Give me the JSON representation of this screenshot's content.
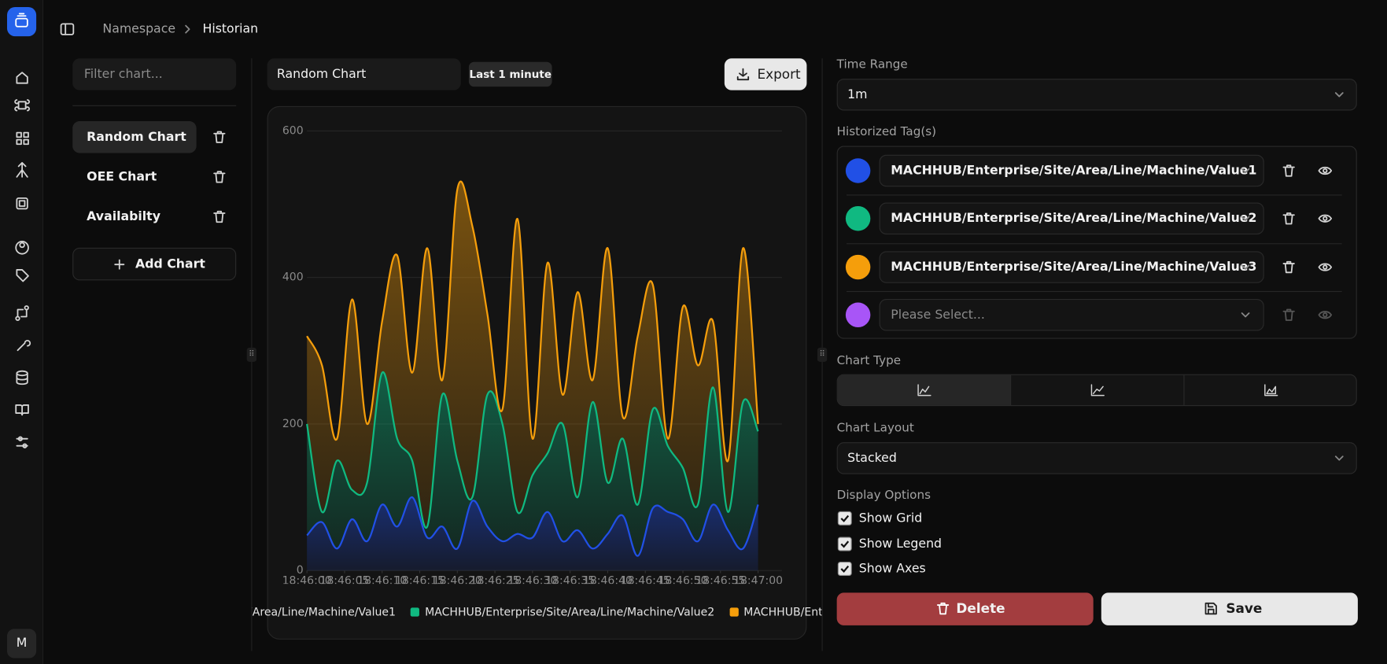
{
  "breadcrumb": [
    "Namespace",
    "Historian"
  ],
  "avatar": "M",
  "filter_placeholder": "Filter chart...",
  "charts": [
    "Random Chart",
    "OEE Chart",
    "Availabilty"
  ],
  "add_chart": "Add Chart",
  "chart_name": "Random Chart",
  "range_badge": "Last 1 minute",
  "export": "Export",
  "panel": {
    "time_range_label": "Time Range",
    "time_range": "1m",
    "tags_label": "Historized Tag(s)",
    "tags": [
      {
        "color": "#2150e6",
        "value": "MACHHUB/Enterprise/Site/Area/Line/Machine/Value1"
      },
      {
        "color": "#10b981",
        "value": "MACHHUB/Enterprise/Site/Area/Line/Machine/Value2"
      },
      {
        "color": "#f59e0b",
        "value": "MACHHUB/Enterprise/Site/Area/Line/Machine/Value3"
      },
      {
        "color": "#a855f7",
        "placeholder": "Please Select..."
      }
    ],
    "chart_type_label": "Chart Type",
    "chart_layout_label": "Chart Layout",
    "chart_layout": "Stacked",
    "display_label": "Display Options",
    "options": [
      {
        "label": "Show Grid",
        "checked": true
      },
      {
        "label": "Show Legend",
        "checked": true
      },
      {
        "label": "Show Axes",
        "checked": true
      }
    ],
    "delete": "Delete",
    "save": "Save"
  },
  "chart_data": {
    "type": "area",
    "stacked": true,
    "grid": true,
    "legend": true,
    "axes": true,
    "x": [
      0,
      2,
      4,
      6,
      8,
      10,
      12,
      14,
      16,
      18,
      20,
      22,
      24,
      26,
      28,
      30,
      32,
      34,
      36,
      38,
      40,
      42,
      44,
      46,
      48,
      50,
      52,
      54,
      56,
      58,
      60
    ],
    "xlim": [
      0,
      60
    ],
    "xticks": [
      {
        "value": 0,
        "label": "18:46:00"
      },
      {
        "value": 5,
        "label": "18:46:05"
      },
      {
        "value": 10,
        "label": "18:46:10"
      },
      {
        "value": 15,
        "label": "18:46:15"
      },
      {
        "value": 20,
        "label": "18:46:20"
      },
      {
        "value": 25,
        "label": "18:46:25"
      },
      {
        "value": 30,
        "label": "18:46:30"
      },
      {
        "value": 35,
        "label": "18:46:35"
      },
      {
        "value": 40,
        "label": "18:46:40"
      },
      {
        "value": 45,
        "label": "18:46:45"
      },
      {
        "value": 50,
        "label": "18:46:50"
      },
      {
        "value": 55,
        "label": "18:46:55"
      },
      {
        "value": 60,
        "label": "18:47:00"
      }
    ],
    "ylim": [
      0,
      600
    ],
    "yticks": [
      0,
      200,
      400,
      600
    ],
    "series": [
      {
        "name": "MACHHUB/Enterprise/Site/Area/Line/Machine/Value1",
        "color": "#2150e6",
        "values": [
          48,
          66,
          30,
          70,
          40,
          90,
          60,
          100,
          45,
          60,
          30,
          95,
          60,
          40,
          50,
          45,
          80,
          40,
          55,
          30,
          50,
          75,
          20,
          85,
          80,
          70,
          40,
          90,
          55,
          30,
          90
        ]
      },
      {
        "name": "MACHHUB/Enterprise/Site/Area/Line/Machine/Value2",
        "color": "#10b981",
        "values": [
          152,
          14,
          120,
          40,
          80,
          180,
          120,
          50,
          15,
          180,
          120,
          5,
          180,
          160,
          30,
          85,
          80,
          160,
          45,
          200,
          70,
          105,
          70,
          135,
          90,
          70,
          50,
          160,
          25,
          200,
          100
        ]
      },
      {
        "name": "MACHHUB/Enterprise/Site/Area/Line/Machine/Value3",
        "color": "#f59e0b",
        "values": [
          120,
          200,
          30,
          260,
          80,
          70,
          250,
          120,
          380,
          20,
          370,
          370,
          110,
          20,
          400,
          50,
          260,
          40,
          280,
          30,
          320,
          30,
          230,
          170,
          10,
          220,
          190,
          90,
          70,
          210,
          10
        ]
      }
    ]
  }
}
